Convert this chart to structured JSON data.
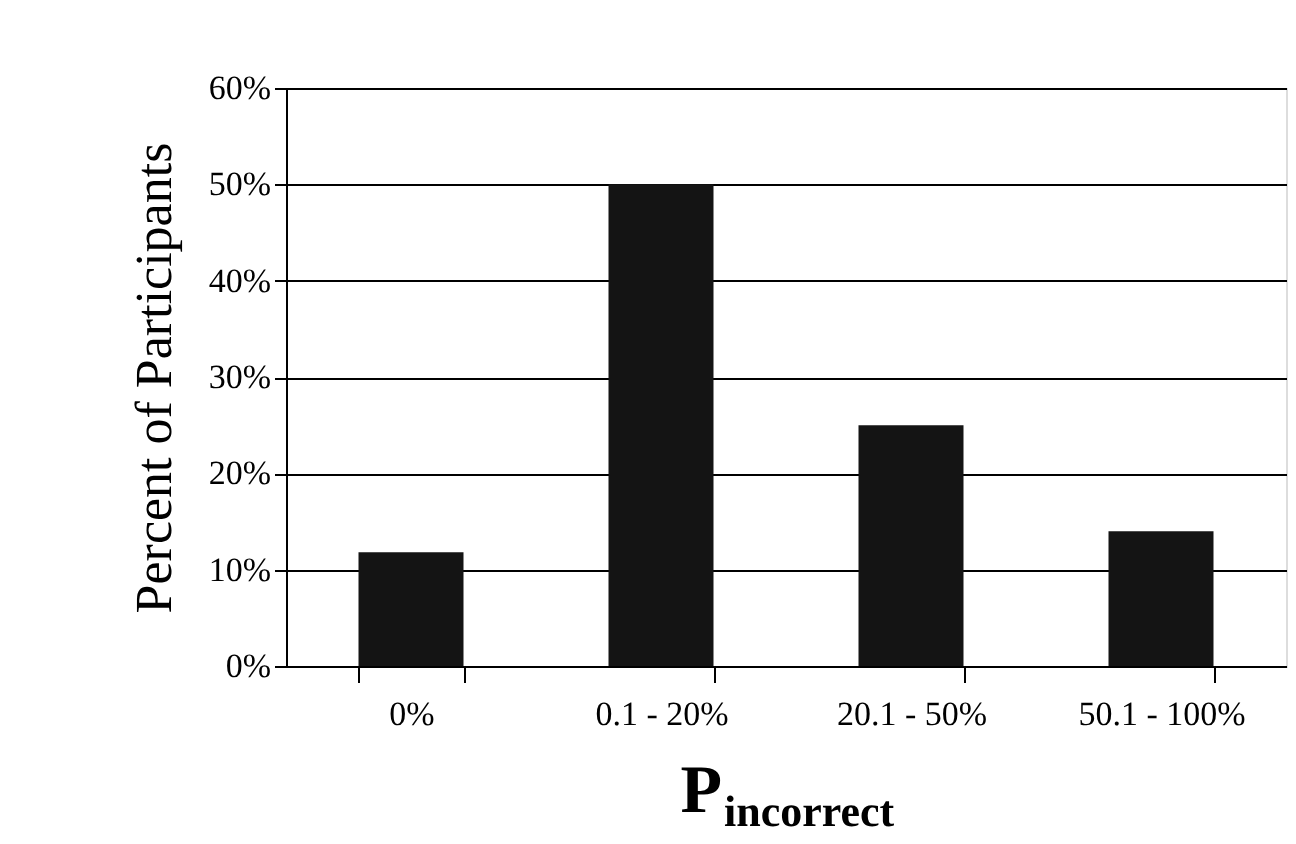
{
  "chart_data": {
    "type": "bar",
    "xlabel": "P$_{incorrect}$",
    "ylabel": "Percent of Participants",
    "categories": [
      "0%",
      "0.1 - 20%",
      "20.1 - 50%",
      "50.1 - 100%"
    ],
    "values": [
      11.8,
      50,
      25,
      14
    ],
    "color": "#141414",
    "ylim": [
      0,
      60
    ],
    "yticks": [
      {
        "value": 0,
        "label": "0%"
      },
      {
        "value": 10,
        "label": "10%"
      },
      {
        "value": 20,
        "label": "20%"
      },
      {
        "value": 30,
        "label": "30%"
      },
      {
        "value": 40,
        "label": "40%"
      },
      {
        "value": 50,
        "label": "50%"
      },
      {
        "value": 60,
        "label": "60%"
      }
    ],
    "grid": "y"
  }
}
